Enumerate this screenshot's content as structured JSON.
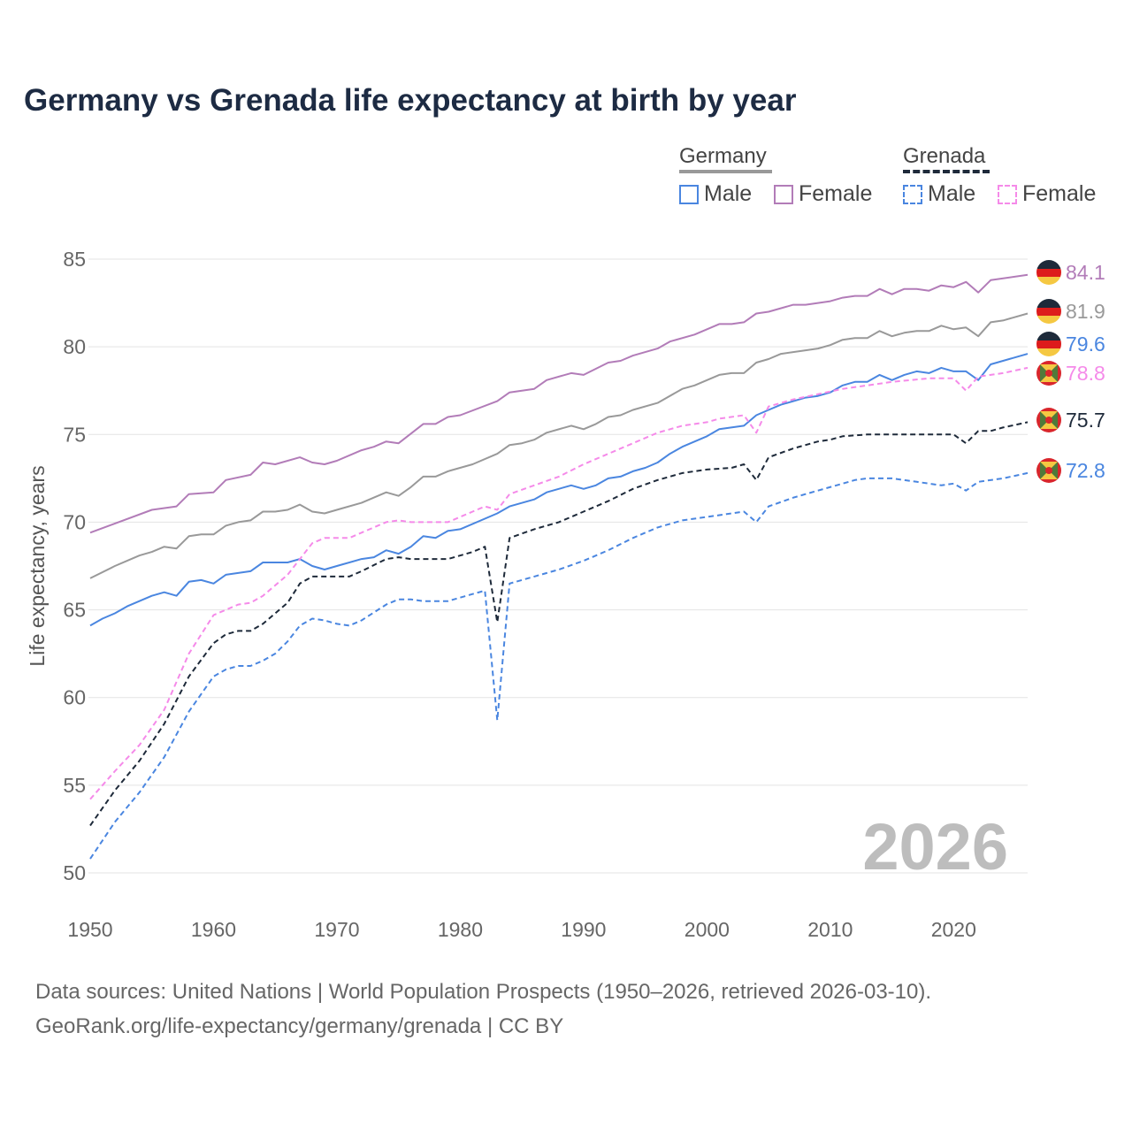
{
  "title": "Germany vs Grenada life expectancy at birth by year",
  "legend": {
    "groups": [
      {
        "name": "Germany",
        "items": [
          {
            "label": "Male",
            "color": "#4a86e0",
            "dashed": false
          },
          {
            "label": "Female",
            "color": "#b27cb8",
            "dashed": false
          }
        ]
      },
      {
        "name": "Grenada",
        "items": [
          {
            "label": "Male",
            "color": "#4a86e0",
            "dashed": true
          },
          {
            "label": "Female",
            "color": "#f58ae9",
            "dashed": true
          }
        ]
      }
    ]
  },
  "watermark_year": "2026",
  "footer": {
    "line1": "Data sources: United Nations | World Population Prospects (1950–2026, retrieved 2026-03-10).",
    "line2": "GeoRank.org/life-expectancy/germany/grenada | CC BY"
  },
  "chart_data": {
    "type": "line",
    "title": "Germany vs Grenada life expectancy at birth by year",
    "xlabel": "",
    "ylabel": "Life expectancy, years",
    "xlim": [
      1950,
      2026
    ],
    "ylim": [
      50,
      85
    ],
    "xticks": [
      1950,
      1960,
      1970,
      1980,
      1990,
      2000,
      2010,
      2020
    ],
    "yticks": [
      50,
      55,
      60,
      65,
      70,
      75,
      80,
      85
    ],
    "grid": true,
    "legend_position": "top-right",
    "series": [
      {
        "name": "Germany Female",
        "country": "Germany",
        "color": "#b27cb8",
        "dashed": false,
        "end_label": "84.1",
        "x": [
          1950,
          1955,
          1957,
          1958,
          1960,
          1961,
          1963,
          1964,
          1965,
          1967,
          1968,
          1969,
          1970,
          1972,
          1973,
          1974,
          1975,
          1977,
          1978,
          1979,
          1980,
          1983,
          1984,
          1986,
          1987,
          1989,
          1990,
          1992,
          1993,
          1994,
          1996,
          1997,
          1999,
          2001,
          2002,
          2003,
          2004,
          2005,
          2007,
          2008,
          2010,
          2011,
          2012,
          2013,
          2014,
          2015,
          2016,
          2017,
          2018,
          2019,
          2020,
          2021,
          2022,
          2023,
          2026
        ],
        "y": [
          69.4,
          70.7,
          70.9,
          71.6,
          71.7,
          72.4,
          72.7,
          73.4,
          73.3,
          73.7,
          73.4,
          73.3,
          73.5,
          74.1,
          74.3,
          74.6,
          74.5,
          75.6,
          75.6,
          76.0,
          76.1,
          76.9,
          77.4,
          77.6,
          78.1,
          78.5,
          78.4,
          79.1,
          79.2,
          79.5,
          79.9,
          80.3,
          80.7,
          81.3,
          81.3,
          81.4,
          81.9,
          82.0,
          82.4,
          82.4,
          82.6,
          82.8,
          82.9,
          82.9,
          83.3,
          83.0,
          83.3,
          83.3,
          83.2,
          83.5,
          83.4,
          83.7,
          83.1,
          83.8,
          84.1
        ]
      },
      {
        "name": "Germany Total",
        "country": "Germany",
        "color": "#999999",
        "dashed": false,
        "end_label": "81.9",
        "x": [
          1950,
          1952,
          1954,
          1955,
          1956,
          1957,
          1958,
          1959,
          1960,
          1961,
          1962,
          1963,
          1964,
          1965,
          1966,
          1967,
          1968,
          1969,
          1970,
          1972,
          1974,
          1975,
          1976,
          1977,
          1978,
          1979,
          1981,
          1983,
          1984,
          1985,
          1986,
          1987,
          1989,
          1990,
          1991,
          1992,
          1993,
          1994,
          1996,
          1998,
          1999,
          2001,
          2002,
          2003,
          2004,
          2005,
          2006,
          2008,
          2009,
          2010,
          2011,
          2012,
          2013,
          2014,
          2015,
          2016,
          2017,
          2018,
          2019,
          2020,
          2021,
          2022,
          2023,
          2024,
          2026
        ],
        "y": [
          66.8,
          67.5,
          68.1,
          68.3,
          68.6,
          68.5,
          69.2,
          69.3,
          69.3,
          69.8,
          70.0,
          70.1,
          70.6,
          70.6,
          70.7,
          71.0,
          70.6,
          70.5,
          70.7,
          71.1,
          71.7,
          71.5,
          72.0,
          72.6,
          72.6,
          72.9,
          73.3,
          73.9,
          74.4,
          74.5,
          74.7,
          75.1,
          75.5,
          75.3,
          75.6,
          76.0,
          76.1,
          76.4,
          76.8,
          77.6,
          77.8,
          78.4,
          78.5,
          78.5,
          79.1,
          79.3,
          79.6,
          79.8,
          79.9,
          80.1,
          80.4,
          80.5,
          80.5,
          80.9,
          80.6,
          80.8,
          80.9,
          80.9,
          81.2,
          81.0,
          81.1,
          80.6,
          81.4,
          81.5,
          81.9
        ]
      },
      {
        "name": "Germany Male",
        "country": "Germany",
        "color": "#4a86e0",
        "dashed": false,
        "end_label": "79.6",
        "x": [
          1950,
          1951,
          1952,
          1953,
          1955,
          1956,
          1957,
          1958,
          1959,
          1960,
          1961,
          1963,
          1964,
          1966,
          1967,
          1968,
          1969,
          1970,
          1972,
          1973,
          1974,
          1975,
          1976,
          1977,
          1978,
          1979,
          1980,
          1983,
          1984,
          1986,
          1987,
          1989,
          1990,
          1991,
          1992,
          1993,
          1994,
          1995,
          1996,
          1997,
          1998,
          2000,
          2001,
          2003,
          2004,
          2005,
          2006,
          2008,
          2009,
          2010,
          2011,
          2012,
          2013,
          2014,
          2015,
          2016,
          2017,
          2018,
          2019,
          2020,
          2021,
          2022,
          2023,
          2026
        ],
        "y": [
          64.1,
          64.5,
          64.8,
          65.2,
          65.8,
          66.0,
          65.8,
          66.6,
          66.7,
          66.5,
          67.0,
          67.2,
          67.7,
          67.7,
          67.9,
          67.5,
          67.3,
          67.5,
          67.9,
          68.0,
          68.4,
          68.2,
          68.6,
          69.2,
          69.1,
          69.5,
          69.6,
          70.5,
          70.9,
          71.3,
          71.7,
          72.1,
          71.9,
          72.1,
          72.5,
          72.6,
          72.9,
          73.1,
          73.4,
          73.9,
          74.3,
          74.9,
          75.3,
          75.5,
          76.1,
          76.4,
          76.7,
          77.1,
          77.2,
          77.4,
          77.8,
          78.0,
          78.0,
          78.4,
          78.1,
          78.4,
          78.6,
          78.5,
          78.8,
          78.6,
          78.6,
          78.1,
          79.0,
          79.6
        ]
      },
      {
        "name": "Grenada Female",
        "country": "Grenada",
        "color": "#f58ae9",
        "dashed": true,
        "end_label": "78.8",
        "x": [
          1950,
          1952,
          1954,
          1956,
          1958,
          1960,
          1962,
          1963,
          1964,
          1966,
          1968,
          1969,
          1971,
          1972,
          1974,
          1975,
          1976,
          1979,
          1981,
          1982,
          1983,
          1984,
          1986,
          1988,
          1990,
          1992,
          1994,
          1996,
          1998,
          2000,
          2001,
          2003,
          2004,
          2005,
          2007,
          2009,
          2011,
          2013,
          2015,
          2018,
          2020,
          2021,
          2022,
          2024,
          2026
        ],
        "y": [
          54.2,
          55.8,
          57.3,
          59.3,
          62.5,
          64.7,
          65.3,
          65.4,
          65.8,
          67.0,
          68.8,
          69.1,
          69.1,
          69.4,
          70.0,
          70.1,
          70.0,
          70.0,
          70.6,
          70.9,
          70.7,
          71.6,
          72.1,
          72.6,
          73.3,
          73.9,
          74.5,
          75.1,
          75.5,
          75.7,
          75.9,
          76.1,
          75.1,
          76.6,
          77.0,
          77.3,
          77.6,
          77.8,
          78.0,
          78.2,
          78.2,
          77.5,
          78.3,
          78.5,
          78.8
        ]
      },
      {
        "name": "Grenada Total",
        "country": "Grenada",
        "color": "#1e2a3a",
        "dashed": true,
        "end_label": "75.7",
        "x": [
          1950,
          1952,
          1954,
          1956,
          1958,
          1960,
          1961,
          1962,
          1963,
          1964,
          1966,
          1967,
          1968,
          1970,
          1971,
          1972,
          1974,
          1975,
          1976,
          1979,
          1981,
          1982,
          1983,
          1984,
          1986,
          1988,
          1990,
          1992,
          1994,
          1996,
          1998,
          2000,
          2002,
          2003,
          2004,
          2005,
          2007,
          2009,
          2010,
          2011,
          2013,
          2016,
          2020,
          2021,
          2022,
          2023,
          2024,
          2026
        ],
        "y": [
          52.7,
          54.7,
          56.4,
          58.5,
          61.2,
          63.1,
          63.6,
          63.8,
          63.8,
          64.2,
          65.4,
          66.5,
          66.9,
          66.9,
          66.9,
          67.2,
          67.9,
          68.0,
          67.9,
          67.9,
          68.3,
          68.6,
          64.3,
          69.1,
          69.6,
          70.0,
          70.6,
          71.2,
          71.9,
          72.4,
          72.8,
          73.0,
          73.1,
          73.3,
          72.4,
          73.7,
          74.2,
          74.6,
          74.7,
          74.9,
          75.0,
          75.0,
          75.0,
          74.5,
          75.2,
          75.2,
          75.4,
          75.7
        ]
      },
      {
        "name": "Grenada Male",
        "country": "Grenada",
        "color": "#4a86e0",
        "dashed": true,
        "end_label": "72.8",
        "x": [
          1950,
          1952,
          1954,
          1956,
          1958,
          1960,
          1961,
          1962,
          1963,
          1964,
          1965,
          1966,
          1967,
          1968,
          1969,
          1970,
          1971,
          1972,
          1974,
          1975,
          1976,
          1977,
          1979,
          1981,
          1982,
          1983,
          1984,
          1986,
          1988,
          1990,
          1992,
          1994,
          1996,
          1998,
          2000,
          2002,
          2003,
          2004,
          2005,
          2007,
          2009,
          2011,
          2012,
          2013,
          2015,
          2017,
          2019,
          2020,
          2021,
          2022,
          2024,
          2026
        ],
        "y": [
          50.8,
          52.9,
          54.6,
          56.6,
          59.2,
          61.2,
          61.6,
          61.8,
          61.8,
          62.1,
          62.5,
          63.2,
          64.1,
          64.5,
          64.4,
          64.2,
          64.1,
          64.4,
          65.3,
          65.6,
          65.6,
          65.5,
          65.5,
          65.9,
          66.1,
          58.7,
          66.5,
          66.9,
          67.3,
          67.8,
          68.4,
          69.1,
          69.7,
          70.1,
          70.3,
          70.5,
          70.6,
          70.0,
          70.9,
          71.4,
          71.8,
          72.2,
          72.4,
          72.5,
          72.5,
          72.3,
          72.1,
          72.2,
          71.8,
          72.3,
          72.5,
          72.8
        ]
      }
    ]
  }
}
